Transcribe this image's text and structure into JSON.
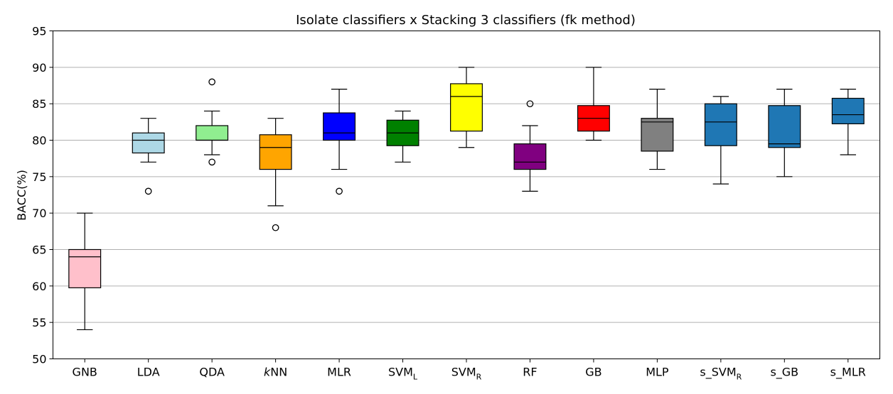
{
  "chart_data": {
    "type": "boxplot",
    "title": "Isolate classifiers x Stacking 3 classifiers (fk method)",
    "xlabel": "",
    "ylabel": "BACC(%)",
    "ylim": [
      50,
      95
    ],
    "yticks": [
      50,
      55,
      60,
      65,
      70,
      75,
      80,
      85,
      90,
      95
    ],
    "grid": "horizontal",
    "categories": [
      {
        "base": "GNB",
        "sub": "",
        "italic_prefix": ""
      },
      {
        "base": "LDA",
        "sub": "",
        "italic_prefix": ""
      },
      {
        "base": "QDA",
        "sub": "",
        "italic_prefix": ""
      },
      {
        "base": "NN",
        "sub": "",
        "italic_prefix": "k"
      },
      {
        "base": "MLR",
        "sub": "",
        "italic_prefix": ""
      },
      {
        "base": "SVM",
        "sub": "L",
        "italic_prefix": ""
      },
      {
        "base": "SVM",
        "sub": "R",
        "italic_prefix": ""
      },
      {
        "base": "RF",
        "sub": "",
        "italic_prefix": ""
      },
      {
        "base": "GB",
        "sub": "",
        "italic_prefix": ""
      },
      {
        "base": "MLP",
        "sub": "",
        "italic_prefix": ""
      },
      {
        "base": "s_SVM",
        "sub": "R",
        "italic_prefix": ""
      },
      {
        "base": "s_GB",
        "sub": "",
        "italic_prefix": ""
      },
      {
        "base": "s_MLR",
        "sub": "",
        "italic_prefix": ""
      }
    ],
    "boxes": [
      {
        "whislo": 54,
        "q1": 59.75,
        "med": 64,
        "q3": 65,
        "whishi": 70,
        "fliers": [],
        "color": "#ffc0cb"
      },
      {
        "whislo": 77,
        "q1": 78.25,
        "med": 80,
        "q3": 81,
        "whishi": 83,
        "fliers": [
          73
        ],
        "color": "#add8e6"
      },
      {
        "whislo": 78,
        "q1": 80,
        "med": 80,
        "q3": 82,
        "whishi": 84,
        "fliers": [
          88,
          77
        ],
        "color": "#90ee90"
      },
      {
        "whislo": 71,
        "q1": 76,
        "med": 79,
        "q3": 80.75,
        "whishi": 83,
        "fliers": [
          68
        ],
        "color": "#ffa500"
      },
      {
        "whislo": 76,
        "q1": 80,
        "med": 81,
        "q3": 83.75,
        "whishi": 87,
        "fliers": [
          73
        ],
        "color": "#0000ff"
      },
      {
        "whislo": 77,
        "q1": 79.25,
        "med": 81,
        "q3": 82.75,
        "whishi": 84,
        "fliers": [],
        "color": "#008000"
      },
      {
        "whislo": 79,
        "q1": 81.25,
        "med": 86,
        "q3": 87.75,
        "whishi": 90,
        "fliers": [],
        "color": "#ffff00"
      },
      {
        "whislo": 73,
        "q1": 76,
        "med": 77,
        "q3": 79.5,
        "whishi": 82,
        "fliers": [
          85
        ],
        "color": "#800080"
      },
      {
        "whislo": 80,
        "q1": 81.25,
        "med": 83,
        "q3": 84.75,
        "whishi": 90,
        "fliers": [],
        "color": "#ff0000"
      },
      {
        "whislo": 76,
        "q1": 78.5,
        "med": 82.5,
        "q3": 83,
        "whishi": 87,
        "fliers": [],
        "color": "#808080"
      },
      {
        "whislo": 74,
        "q1": 79.25,
        "med": 82.5,
        "q3": 85,
        "whishi": 86,
        "fliers": [],
        "color": "#1f77b4"
      },
      {
        "whislo": 75,
        "q1": 79,
        "med": 79.5,
        "q3": 84.75,
        "whishi": 87,
        "fliers": [],
        "color": "#1f77b4"
      },
      {
        "whislo": 78,
        "q1": 82.25,
        "med": 83.5,
        "q3": 85.75,
        "whishi": 87,
        "fliers": [],
        "color": "#1f77b4"
      }
    ]
  }
}
